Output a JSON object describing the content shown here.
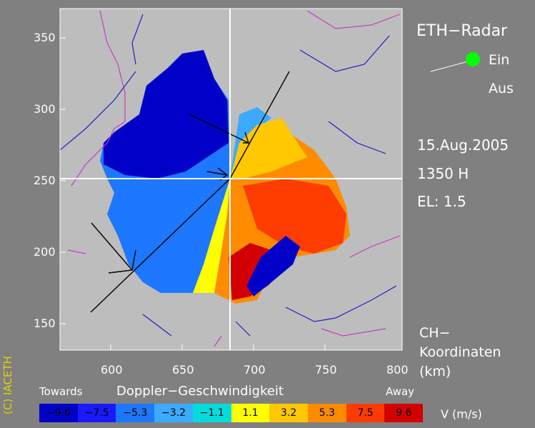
{
  "header": {
    "title": "ETH−Radar"
  },
  "toggle": {
    "on_label": "Ein",
    "off_label": "Aus"
  },
  "info": {
    "date": "15.Aug.2005",
    "time": "1350  H",
    "elevation": "EL:  1.5"
  },
  "coords": {
    "line1": "CH−",
    "line2": "Koordinaten",
    "line3": "(km)"
  },
  "copyright": "(C)  IACETH",
  "axes": {
    "x_ticks": [
      "600",
      "650",
      "700",
      "750",
      "800"
    ],
    "y_ticks": [
      "350",
      "300",
      "250",
      "200",
      "150"
    ]
  },
  "legend": {
    "towards": "Towards",
    "title": "Doppler−Geschwindigkeit",
    "away": "Away",
    "unit": "V  (m/s)",
    "values": [
      "−9.6",
      "−7.5",
      "−5.3",
      "−3.2",
      "−1.1",
      "1.1",
      "3.2",
      "5.3",
      "7.5",
      "9.6"
    ],
    "colors": [
      "#0000c8",
      "#1a1aff",
      "#1e78ff",
      "#3caaff",
      "#00dcdc",
      "#ffff00",
      "#ffc800",
      "#ff8c00",
      "#ff3c00",
      "#d20000"
    ]
  }
}
